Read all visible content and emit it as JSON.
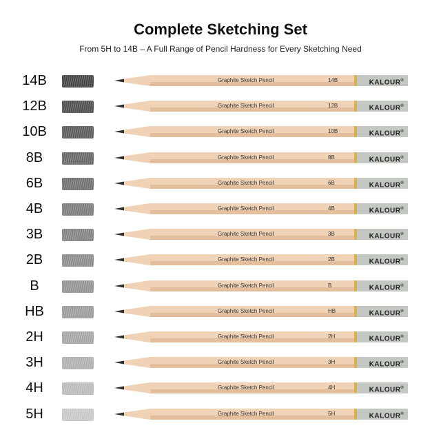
{
  "header": {
    "title": "Complete Sketching Set",
    "subtitle": "From 5H to 14B – A Full Range of Pencil Hardness for Every Sketching Need"
  },
  "pencil_text": "Graphite Sketch Pencil",
  "brand": "KALOUR",
  "brand_mark": "®",
  "colors": {
    "wood": "#f0d3b6",
    "wood_shade": "#e3bf9d",
    "cap": "#c3c8c2",
    "ferrule": "#d9b24f",
    "graphite": "#2f2f2f"
  },
  "pencils": [
    {
      "grade": "14B",
      "swatch": "#3d3d3d"
    },
    {
      "grade": "12B",
      "swatch": "#474747"
    },
    {
      "grade": "10B",
      "swatch": "#555555"
    },
    {
      "grade": "8B",
      "swatch": "#616161"
    },
    {
      "grade": "6B",
      "swatch": "#6b6b6b"
    },
    {
      "grade": "4B",
      "swatch": "#777777"
    },
    {
      "grade": "3B",
      "swatch": "#7f7f7f"
    },
    {
      "grade": "2B",
      "swatch": "#878787"
    },
    {
      "grade": "B",
      "swatch": "#8f8f8f"
    },
    {
      "grade": "HB",
      "swatch": "#989898"
    },
    {
      "grade": "2H",
      "swatch": "#a3a3a3"
    },
    {
      "grade": "3H",
      "swatch": "#adadad"
    },
    {
      "grade": "4H",
      "swatch": "#b8b8b8"
    },
    {
      "grade": "5H",
      "swatch": "#c6c6c6"
    }
  ]
}
